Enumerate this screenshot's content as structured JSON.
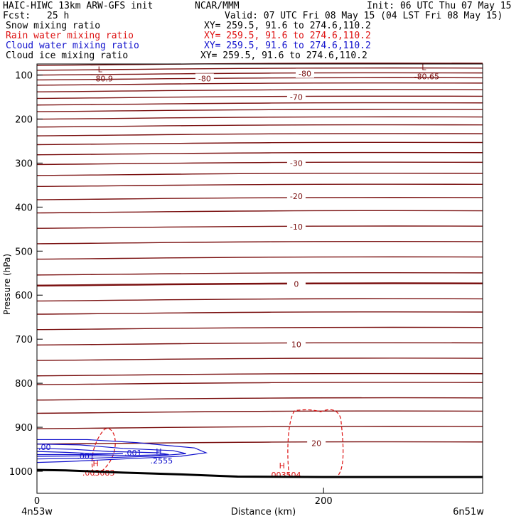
{
  "header": {
    "model": "HAIC-HIWC 13km ARW-GFS init",
    "org": "NCAR/MMM",
    "init": "Init: 06 UTC Thu 07 May 15",
    "fcst_label": "Fcst:",
    "fcst_value": "25 h",
    "valid": "Valid: 07 UTC Fri 08 May 15 (04 LST Fri 08 May 15)"
  },
  "fields": [
    {
      "name": "Snow mixing ratio",
      "xy": "XY= 259.5, 91.6 to 274.6,110.2",
      "color": "#000000"
    },
    {
      "name": "Rain water mixing ratio",
      "xy": "XY= 259.5, 91.6 to 274.6,110.2",
      "color": "#dd1111"
    },
    {
      "name": "Cloud water mixing ratio",
      "xy": "XY= 259.5, 91.6 to 274.6,110.2",
      "color": "#1111cc"
    },
    {
      "name": "Cloud ice mixing ratio",
      "xy": "XY= 259.5, 91.6 to 274.6,110.2",
      "color": "#000000"
    }
  ],
  "colors": {
    "temperature": "#7a1010",
    "rain": "#dd1111",
    "cloud_water": "#1111cc",
    "terrain": "#000000"
  },
  "chart_data": {
    "type": "cross-section",
    "xlabel": "Distance (km)",
    "ylabel": "Pressure (hPa)",
    "xlim": [
      0,
      311
    ],
    "ylim": [
      1050,
      75
    ],
    "x_ticks": [
      0,
      200
    ],
    "x_tick_labels": [
      "0",
      "200"
    ],
    "y_ticks": [
      100,
      200,
      300,
      400,
      500,
      600,
      700,
      800,
      900,
      1000
    ],
    "y_tick_labels": [
      "100",
      "200",
      "300",
      "400",
      "500",
      "600",
      "700",
      "800",
      "900",
      "1000"
    ],
    "left_endpoint": "4n53w",
    "right_endpoint": "6n51w",
    "isotherm_pressures": [
      75,
      86,
      97,
      108,
      120,
      135,
      150,
      165,
      180,
      197,
      215,
      235,
      255,
      278,
      300,
      325,
      350,
      380,
      410,
      445,
      480,
      515,
      551,
      575,
      610,
      640,
      675,
      710,
      745,
      780,
      800,
      835,
      865,
      900,
      935
    ],
    "isotherm_labels": [
      {
        "text": "-80",
        "x": 187,
        "p": 97
      },
      {
        "text": "-80",
        "x": 117,
        "p": 108
      },
      {
        "text": "-70",
        "x": 181,
        "p": 150
      },
      {
        "text": "-30",
        "x": 181,
        "p": 300
      },
      {
        "text": "-20",
        "x": 181,
        "p": 375
      },
      {
        "text": "-10",
        "x": 181,
        "p": 445
      },
      {
        "text": "0",
        "x": 181,
        "p": 575
      },
      {
        "text": "10",
        "x": 181,
        "p": 712
      },
      {
        "text": "20",
        "x": 195,
        "p": 936
      }
    ],
    "extrema": [
      {
        "mark": "L",
        "value": "-80.9",
        "x": 44,
        "p": 100,
        "color": "#7a1010"
      },
      {
        "mark": "L",
        "value": "-80.65",
        "x": 270,
        "p": 95,
        "color": "#7a1010"
      },
      {
        "mark": "H",
        "value": ".003083",
        "x": 41,
        "p": 995,
        "color": "#dd1111"
      },
      {
        "mark": "H",
        "value": ".003504",
        "x": 171,
        "p": 1000,
        "color": "#dd1111"
      },
      {
        "mark": "H",
        "value": ".2555",
        "x": 85,
        "p": 968,
        "color": "#1111cc"
      }
    ],
    "cloud_water_labels": [
      {
        "text": ".001",
        "x": 27,
        "p": 965
      },
      {
        "text": ".001",
        "x": 60,
        "p": 958
      },
      {
        "text": ".00",
        "x": 0,
        "p": 945
      }
    ],
    "terrain_surface_hpa": [
      {
        "x": 0,
        "p": 997
      },
      {
        "x": 20,
        "p": 998
      },
      {
        "x": 60,
        "p": 1003
      },
      {
        "x": 100,
        "p": 1007
      },
      {
        "x": 140,
        "p": 1012
      },
      {
        "x": 200,
        "p": 1013
      },
      {
        "x": 311,
        "p": 1013
      }
    ]
  }
}
